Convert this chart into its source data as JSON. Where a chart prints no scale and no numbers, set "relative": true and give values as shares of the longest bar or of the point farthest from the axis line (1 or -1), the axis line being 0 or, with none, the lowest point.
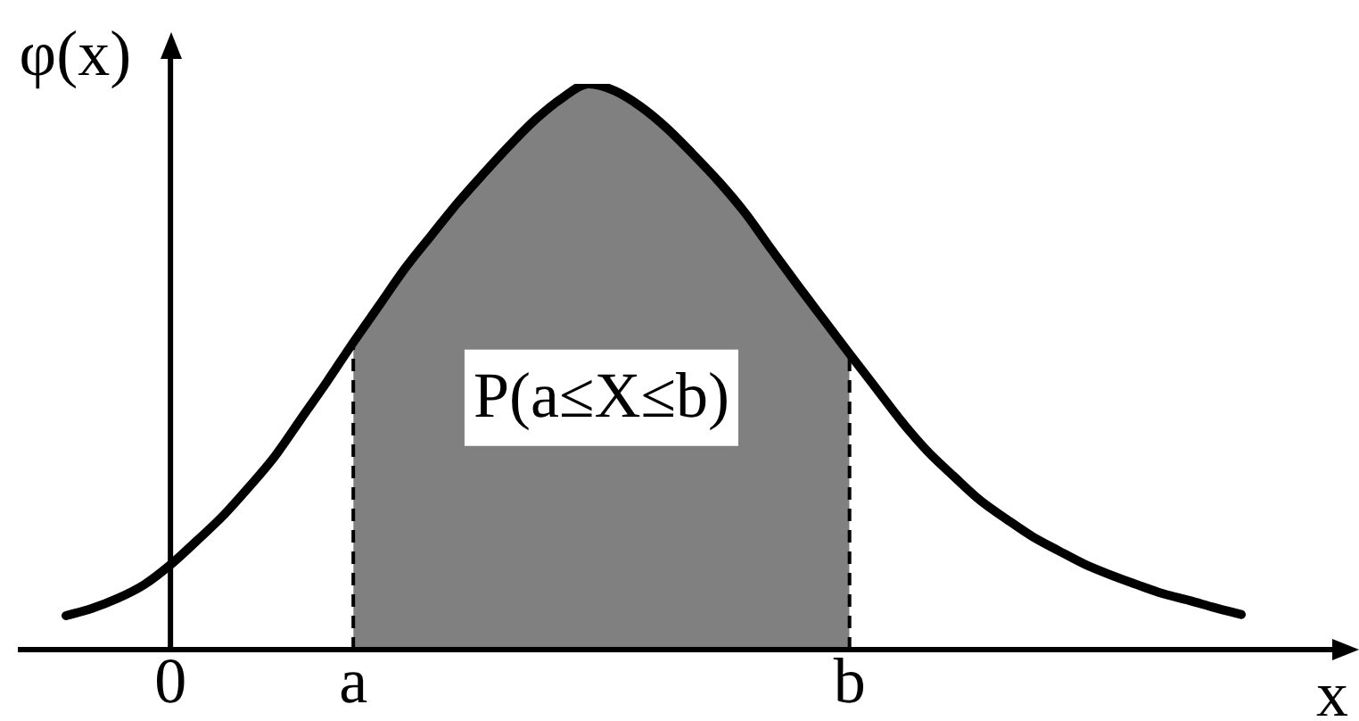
{
  "chart_data": {
    "type": "line",
    "relative": true,
    "xlabel": "x",
    "ylabel": "φ(x)",
    "marker": "none",
    "categories": [
      null,
      null,
      null,
      null,
      "0",
      null,
      null,
      null,
      null,
      null,
      null,
      "a",
      null,
      null,
      null,
      null,
      null,
      null,
      null,
      null,
      null,
      null,
      null,
      null,
      null,
      null,
      null,
      null,
      null,
      null,
      "b",
      null,
      null,
      null,
      null,
      null,
      null,
      null,
      null,
      null,
      null,
      null,
      null,
      null,
      null,
      null
    ],
    "series": [
      {
        "color": "#000000",
        "values": [
          0.06,
          0.073,
          0.091,
          0.115,
          0.15,
          0.192,
          0.236,
          0.287,
          0.342,
          0.408,
          0.474,
          0.543,
          0.609,
          0.675,
          0.733,
          0.79,
          0.842,
          0.892,
          0.938,
          0.975,
          1,
          0.988,
          0.96,
          0.922,
          0.876,
          0.827,
          0.772,
          0.708,
          0.645,
          0.584,
          0.523,
          0.463,
          0.403,
          0.35,
          0.306,
          0.264,
          0.231,
          0.2,
          0.175,
          0.151,
          0.132,
          0.115,
          0.099,
          0.087,
          0.074,
          0.062
        ]
      },
      {
        "type": "area",
        "color": "#808080",
        "line_style": "dashed",
        "values": [
          null,
          null,
          null,
          null,
          null,
          null,
          null,
          null,
          null,
          null,
          null,
          0.543,
          0.609,
          0.675,
          0.733,
          0.79,
          0.842,
          0.892,
          0.938,
          0.975,
          1,
          0.988,
          0.96,
          0.922,
          0.876,
          0.827,
          0.772,
          0.708,
          0.645,
          0.584,
          0.523,
          null,
          null,
          null,
          null,
          null,
          null,
          null,
          null,
          null,
          null,
          null,
          null,
          null,
          null,
          null
        ]
      }
    ],
    "annotations": [
      "P(a≤X≤b)"
    ]
  }
}
